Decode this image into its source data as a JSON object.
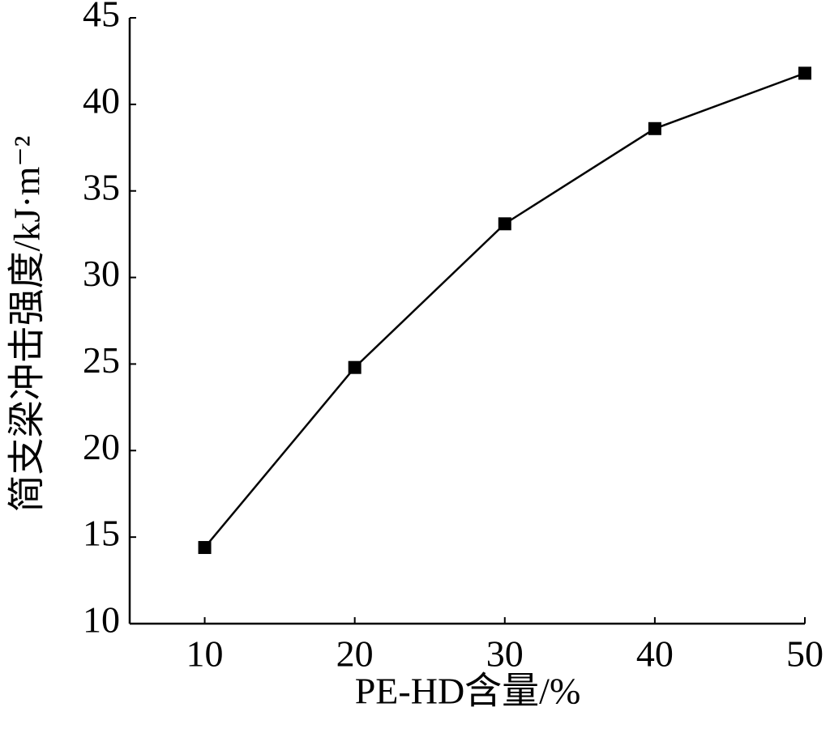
{
  "chart_data": {
    "type": "line",
    "x_label": "PE-HD含量/%",
    "y_label": "简支梁冲击强度/kJ·m⁻²",
    "x": [
      10,
      20,
      30,
      40,
      50
    ],
    "series": [
      {
        "color": "#000000",
        "values": [
          14.4,
          24.8,
          33.1,
          38.6,
          41.8
        ]
      }
    ],
    "xlim": [
      5,
      50
    ],
    "xticks": [
      10,
      20,
      30,
      40,
      50
    ],
    "ylim": [
      10,
      45
    ],
    "yticks": [
      10,
      15,
      20,
      25,
      30,
      35,
      40,
      45
    ],
    "grid": false
  }
}
